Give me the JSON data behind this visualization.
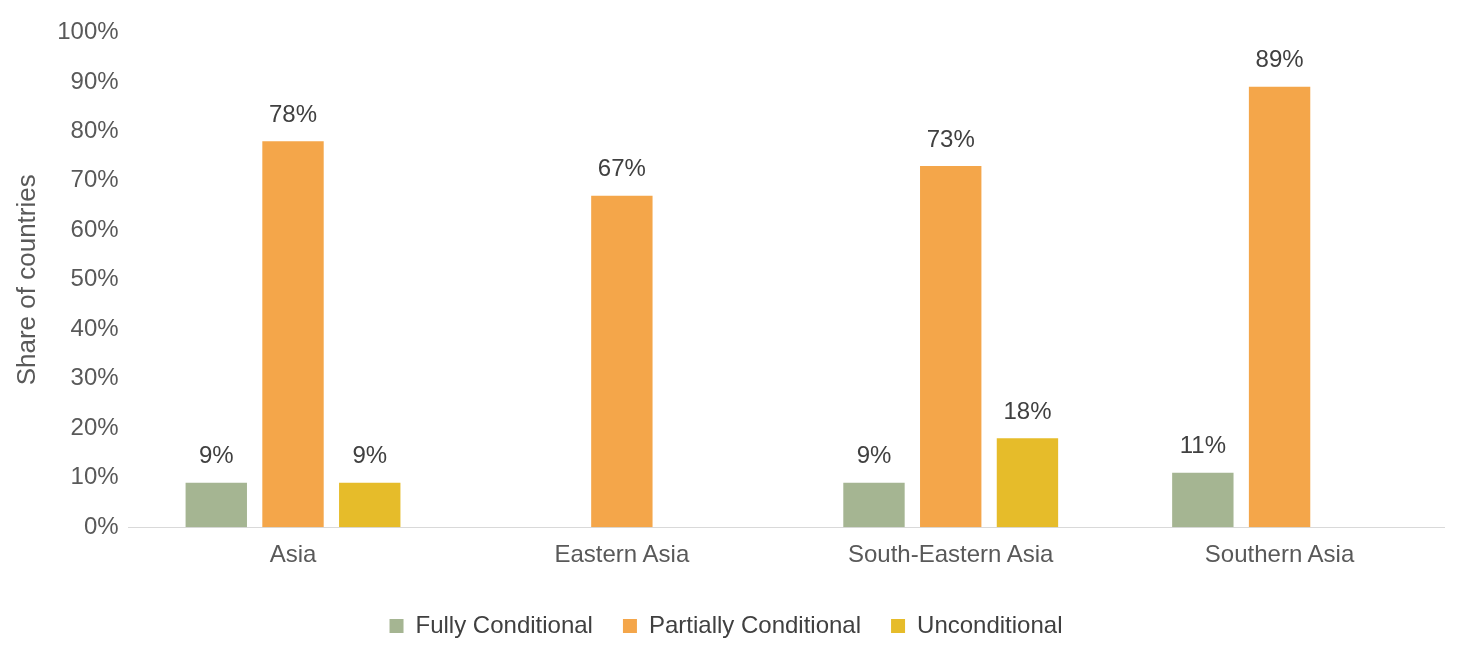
{
  "chart_data": {
    "type": "bar",
    "ylabel": "Share of countries",
    "categories": [
      "Asia",
      "Eastern Asia",
      "South-Eastern Asia",
      "Southern Asia"
    ],
    "series": [
      {
        "name": "Fully Conditional",
        "color": "#a5b592",
        "values": [
          9,
          null,
          9,
          11
        ],
        "value_labels": [
          "9%",
          null,
          "9%",
          "11%"
        ]
      },
      {
        "name": "Partially Conditional",
        "color": "#f4a64a",
        "values": [
          78,
          67,
          73,
          89
        ],
        "value_labels": [
          "78%",
          "67%",
          "73%",
          "89%"
        ]
      },
      {
        "name": "Unconditional",
        "color": "#e6bc2a",
        "values": [
          9,
          null,
          18,
          null
        ],
        "value_labels": [
          "9%",
          null,
          "18%",
          null
        ]
      }
    ],
    "ylim": [
      0,
      100
    ],
    "yticks": [
      {
        "value": 0,
        "label": "0%"
      },
      {
        "value": 10,
        "label": "10%"
      },
      {
        "value": 20,
        "label": "20%"
      },
      {
        "value": 30,
        "label": "30%"
      },
      {
        "value": 40,
        "label": "40%"
      },
      {
        "value": 50,
        "label": "50%"
      },
      {
        "value": 60,
        "label": "60%"
      },
      {
        "value": 70,
        "label": "70%"
      },
      {
        "value": 80,
        "label": "80%"
      },
      {
        "value": 90,
        "label": "90%"
      },
      {
        "value": 100,
        "label": "100%"
      }
    ],
    "grid": false,
    "legend": "bottom"
  }
}
